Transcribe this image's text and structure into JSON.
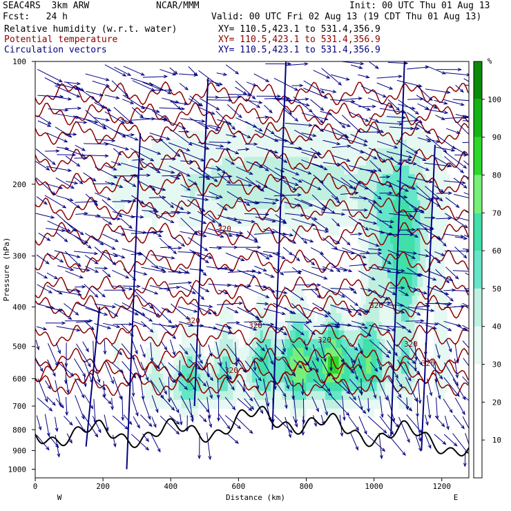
{
  "header": {
    "model": "SEAC4RS  3km ARW",
    "center": "NCAR/MMM",
    "init": "Init: 00 UTC Thu 01 Aug 13",
    "forecast": "Fcst:   24 h",
    "valid": "Valid: 00 UTC Fri 02 Aug 13 (19 CDT Thu 01 Aug 13)",
    "fields": [
      {
        "label": "Relative humidity (w.r.t. water)",
        "xy": "XY= 110.5,423.1 to 531.4,356.9",
        "color": "#000000"
      },
      {
        "label": "Potential temperature",
        "xy": "XY= 110.5,423.1 to 531.4,356.9",
        "color": "#8b0000"
      },
      {
        "label": "Circulation vectors",
        "xy": "XY= 110.5,423.1 to 531.4,356.9",
        "color": "#000080"
      }
    ]
  },
  "chart_data": {
    "type": "heatmap",
    "title": "Relative humidity (w.r.t. water)",
    "xlabel": "Distance (km)",
    "ylabel": "Pressure (hPa)",
    "xlim": [
      0,
      1280
    ],
    "ylim": [
      1050,
      100
    ],
    "y_scale": "log",
    "x_ticks": [
      "0",
      "200",
      "400",
      "600",
      "800",
      "1000",
      "1200"
    ],
    "y_ticks": [
      "100",
      "200",
      "300",
      "400",
      "500",
      "600",
      "700",
      "800",
      "900",
      "1000"
    ],
    "x_end_labels": {
      "left": "W",
      "right": "E"
    },
    "colorbar": {
      "unit": "%",
      "levels": [
        0,
        10,
        20,
        30,
        40,
        50,
        60,
        70,
        80,
        90,
        100,
        110
      ],
      "tick_labels": [
        "10",
        "20",
        "30",
        "40",
        "50",
        "60",
        "70",
        "80",
        "90",
        "100"
      ],
      "colors": [
        "#ffffff",
        "#ffffff",
        "#ffffff",
        "#e6f8f2",
        "#bff0e0",
        "#66e6c8",
        "#40e0a8",
        "#78f078",
        "#2cd82c",
        "#14b414",
        "#0a8c0a",
        "#006400"
      ]
    },
    "theta_contour_labels": [
      "320",
      "320",
      "320",
      "320",
      "320",
      "320",
      "320",
      "320"
    ],
    "contour_colors": {
      "theta": "#8b0000",
      "terrain": "#000000",
      "vectors": "#000080"
    }
  }
}
